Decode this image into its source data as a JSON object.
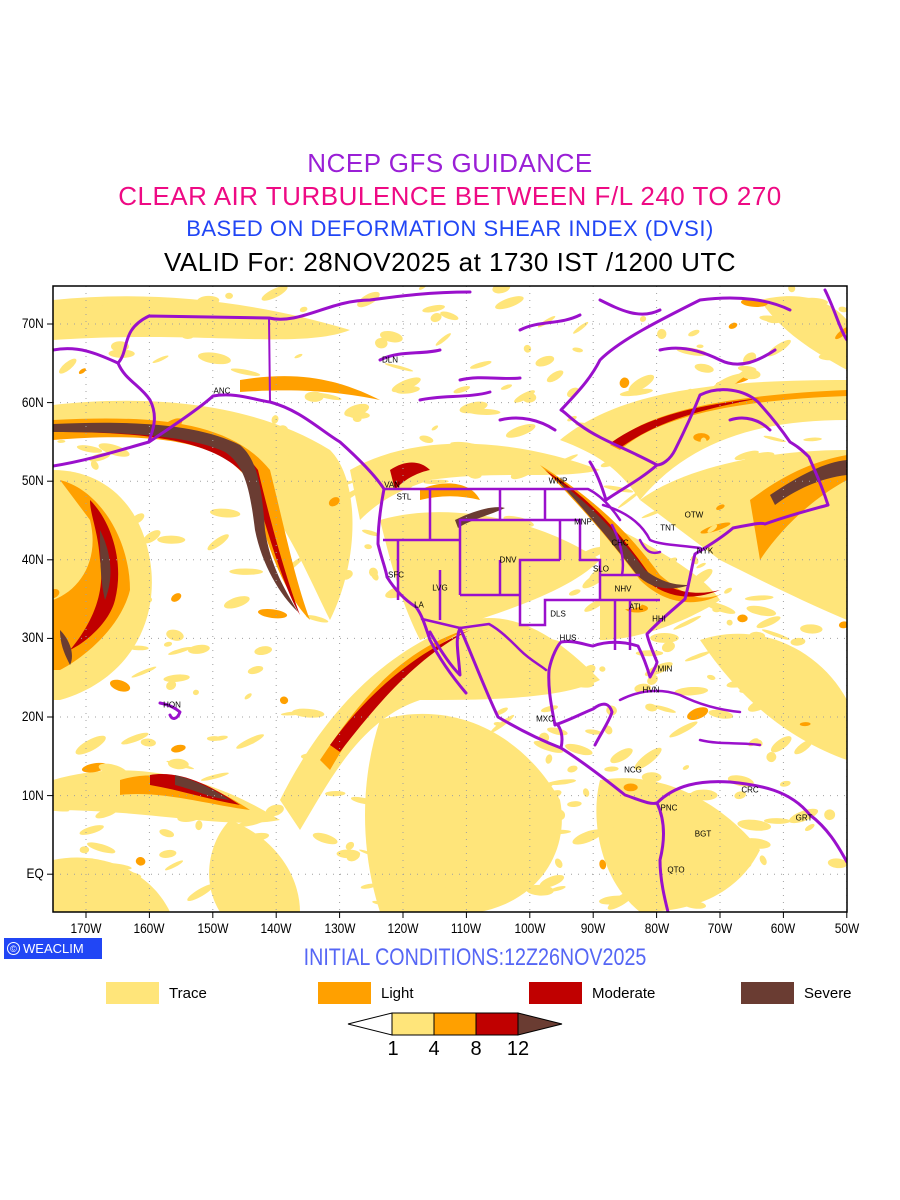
{
  "titles": {
    "line1": "NCEP GFS GUIDANCE",
    "line2": "CLEAR AIR TURBULENCE BETWEEN F/L 240 TO 270",
    "line3": "BASED ON DEFORMATION SHEAR INDEX (DVSI)",
    "line4": "VALID For: 28NOV2025 at 1730 IST /1200 UTC"
  },
  "axes": {
    "x_ticks": [
      "170W",
      "160W",
      "150W",
      "140W",
      "130W",
      "120W",
      "110W",
      "100W",
      "90W",
      "80W",
      "70W",
      "60W",
      "50W"
    ],
    "y_ticks": [
      "70N",
      "60N",
      "50N",
      "40N",
      "30N",
      "20N",
      "10N",
      "EQ"
    ]
  },
  "cities": [
    "DLN",
    "ANC",
    "VAN",
    "STL",
    "WNP",
    "MNP",
    "CHC",
    "TNT",
    "OTW",
    "NYK",
    "SFC",
    "LVG",
    "LA",
    "DNV",
    "SLO",
    "NHV",
    "ATL",
    "HHI",
    "DLS",
    "HUS",
    "MIN",
    "HVN",
    "MXC",
    "NCG",
    "PNC",
    "CRC",
    "GRT",
    "BGT",
    "QTO",
    "HON"
  ],
  "logo": "WEACLIM",
  "logo_symbol": "©",
  "initial_conditions": "INITIAL CONDITIONS:12Z26NOV2025",
  "legend": [
    {
      "label": "Trace",
      "color": "#FFE57A"
    },
    {
      "label": "Light",
      "color": "#FFA000"
    },
    {
      "label": "Moderate",
      "color": "#C00000"
    },
    {
      "label": "Severe",
      "color": "#6A3C32"
    }
  ],
  "colorbar": {
    "levels": [
      "1",
      "4",
      "8",
      "12"
    ]
  },
  "colors": {
    "coast": "#9A10CC",
    "grid": "#A0A0A0"
  }
}
